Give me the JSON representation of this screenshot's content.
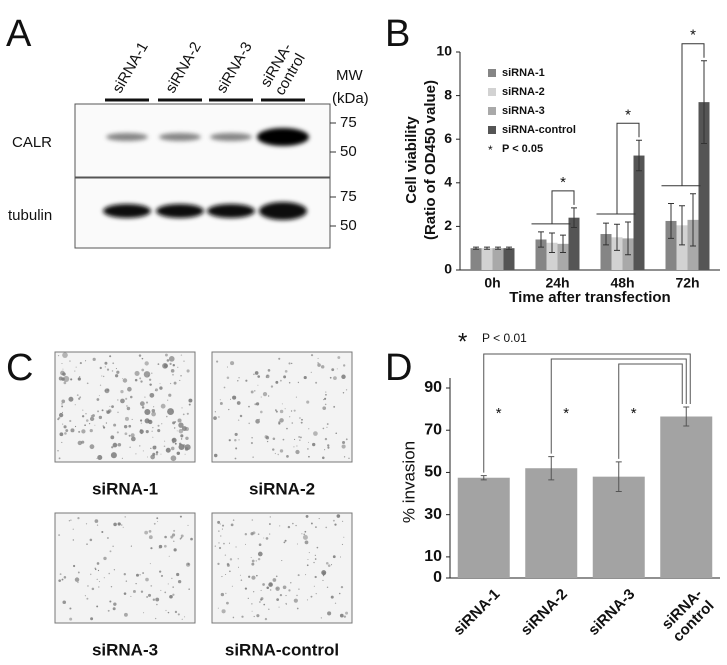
{
  "panel_labels": [
    "A",
    "B",
    "C",
    "D"
  ],
  "blot": {
    "lanes": [
      "siRNA-1",
      "siRNA-2",
      "siRNA-3",
      "siRNA-\ncontrol"
    ],
    "rows": [
      "CALR",
      "tubulin"
    ],
    "mw_title": [
      "MW",
      "(kDa)"
    ],
    "mw_markers": [
      [
        "75",
        "50"
      ],
      [
        "75",
        "50"
      ]
    ]
  },
  "images": {
    "captions": [
      "siRNA-1",
      "siRNA-2",
      "siRNA-3",
      "siRNA-control"
    ]
  },
  "chart_data": [
    {
      "type": "bar",
      "ylabel": [
        "Cell viability",
        "(Ratio of OD450 value)"
      ],
      "xlabel": "Time after transfection",
      "categories": [
        "0h",
        "24h",
        "48h",
        "72h"
      ],
      "series": [
        {
          "name": "siRNA-1",
          "color": "#858585",
          "values": [
            1.0,
            1.4,
            1.65,
            2.25
          ],
          "errors": [
            0.05,
            0.35,
            0.5,
            0.8
          ]
        },
        {
          "name": "siRNA-2",
          "color": "#d2d2d2",
          "values": [
            1.0,
            1.25,
            1.5,
            2.05
          ],
          "errors": [
            0.05,
            0.45,
            0.6,
            0.9
          ]
        },
        {
          "name": "siRNA-3",
          "color": "#a9a9a9",
          "values": [
            1.0,
            1.2,
            1.45,
            2.3
          ],
          "errors": [
            0.05,
            0.4,
            0.75,
            1.2
          ]
        },
        {
          "name": "siRNA-control",
          "color": "#555555",
          "values": [
            1.0,
            2.4,
            5.25,
            7.7
          ],
          "errors": [
            0.05,
            0.45,
            0.7,
            1.9
          ]
        }
      ],
      "ylim": [
        0,
        10
      ],
      "yticks": [
        0,
        2,
        4,
        6,
        8,
        10
      ],
      "legend": "upper left",
      "significance": {
        "marker": "*",
        "label": "P < 0.05"
      },
      "annotations": [
        "*",
        "*",
        "*"
      ]
    },
    {
      "type": "bar",
      "ylabel": "% invasion",
      "categories": [
        "siRNA-1",
        "siRNA-2",
        "siRNA-3",
        "siRNA-\ncontrol"
      ],
      "values": [
        47.5,
        52,
        48,
        76.5
      ],
      "errors": [
        1,
        5.5,
        7,
        4.5
      ],
      "color": "#a3a3a3",
      "ylim": [
        0,
        90
      ],
      "yticks": [
        0,
        10,
        30,
        50,
        70,
        90
      ],
      "significance": {
        "marker": "*",
        "label": "P < 0.01"
      },
      "annotations": [
        "*",
        "*",
        "*"
      ]
    }
  ]
}
